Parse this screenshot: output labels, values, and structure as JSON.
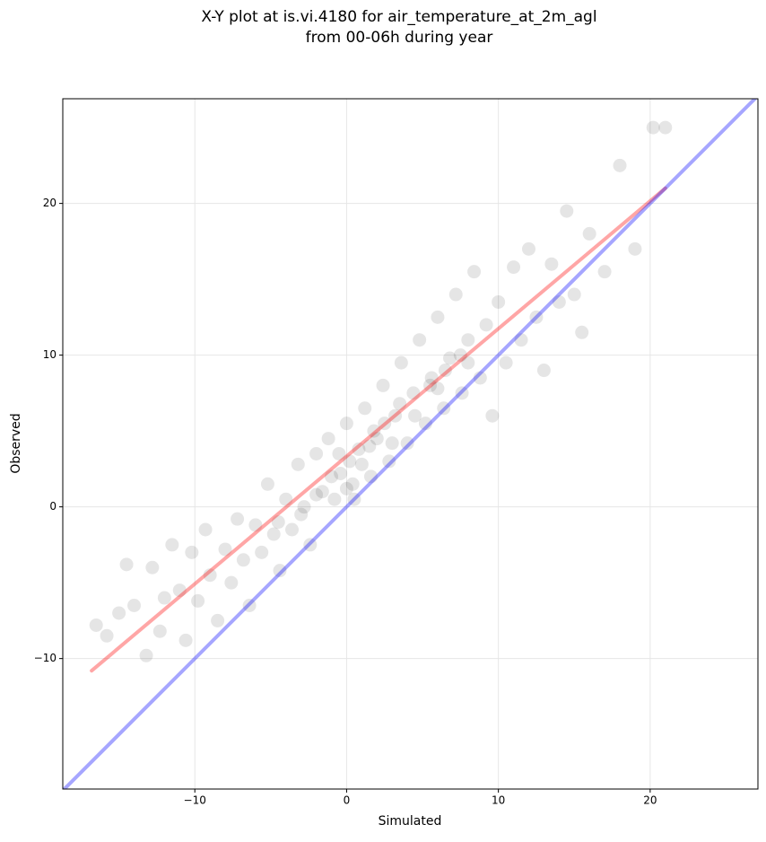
{
  "chart_data": {
    "type": "scatter",
    "title": [
      "X-Y plot at is.vi.4180 for air_temperature_at_2m_agl",
      "from 00-06h during year"
    ],
    "xlabel": "Simulated",
    "ylabel": "Observed",
    "xlim": [
      -18.7,
      27.1
    ],
    "ylim": [
      -18.6,
      26.9
    ],
    "xticks": [
      {
        "value": -10,
        "label": "−10"
      },
      0,
      10,
      20
    ],
    "yticks": [
      {
        "value": -10,
        "label": "−10"
      },
      0,
      10,
      20
    ],
    "grid": true,
    "color": "#000000",
    "marker_alpha": 0.1,
    "x": [
      -16.5,
      -15.8,
      -15,
      -14.5,
      -14,
      -13.2,
      -12.8,
      -12.3,
      -12,
      -11.5,
      -11,
      -10.6,
      -10.2,
      -9.8,
      -9.3,
      -9,
      -8.5,
      -8,
      -7.6,
      -7.2,
      -6.8,
      -6.4,
      -6,
      -5.6,
      -5.2,
      -4.8,
      -4.4,
      -4,
      -3.6,
      -3.2,
      -2.8,
      -2.4,
      -2,
      -1.6,
      -1.2,
      -0.8,
      -0.4,
      0,
      0.4,
      0.8,
      1.2,
      1.6,
      2,
      2.4,
      2.8,
      3.2,
      3.6,
      4,
      4.4,
      4.8,
      5.2,
      5.6,
      6,
      6.4,
      6.8,
      7.2,
      7.6,
      8,
      8.4,
      8.8,
      9.2,
      9.6,
      10,
      10.5,
      11,
      11.5,
      12,
      12.5,
      13,
      13.5,
      14,
      14.5,
      15,
      15.5,
      16,
      17,
      18,
      19,
      20.2,
      21,
      -1,
      0.2,
      1,
      1.5,
      0.5,
      -0.5,
      2.5,
      3.5,
      4.5,
      5.5,
      6.5,
      7.5,
      3,
      -2,
      -3,
      -4.5,
      0,
      1.8,
      6,
      8
    ],
    "y": [
      -7.8,
      -8.5,
      -7,
      -3.8,
      -6.5,
      -9.8,
      -4,
      -8.2,
      -6,
      -2.5,
      -5.5,
      -8.8,
      -3,
      -6.2,
      -1.5,
      -4.5,
      -7.5,
      -2.8,
      -5,
      -0.8,
      -3.5,
      -6.5,
      -1.2,
      -3,
      1.5,
      -1.8,
      -4.2,
      0.5,
      -1.5,
      2.8,
      0,
      -2.5,
      3.5,
      1,
      4.5,
      0.5,
      2.2,
      5.5,
      1.5,
      3.8,
      6.5,
      2,
      4.5,
      8,
      3,
      6,
      9.5,
      4.2,
      7.5,
      11,
      5.5,
      8.5,
      12.5,
      6.5,
      9.8,
      14,
      7.5,
      11,
      15.5,
      8.5,
      12,
      6,
      13.5,
      9.5,
      15.8,
      11,
      17,
      12.5,
      9,
      16,
      13.5,
      19.5,
      14,
      11.5,
      18,
      15.5,
      22.5,
      17,
      25,
      25,
      2,
      3,
      2.8,
      4,
      0.5,
      3.5,
      5.5,
      6.8,
      6,
      8,
      9,
      10,
      4.2,
      0.8,
      -0.5,
      -1,
      1.2,
      5,
      7.8,
      9.5
    ],
    "lines": [
      {
        "color": "#ff0000",
        "x": [
          -16.8,
          21
        ],
        "y": [
          -10.8,
          21
        ]
      },
      {
        "color": "#0000ff",
        "x": [
          -18.7,
          27.1
        ],
        "y": [
          -18.7,
          27.1
        ]
      }
    ]
  }
}
